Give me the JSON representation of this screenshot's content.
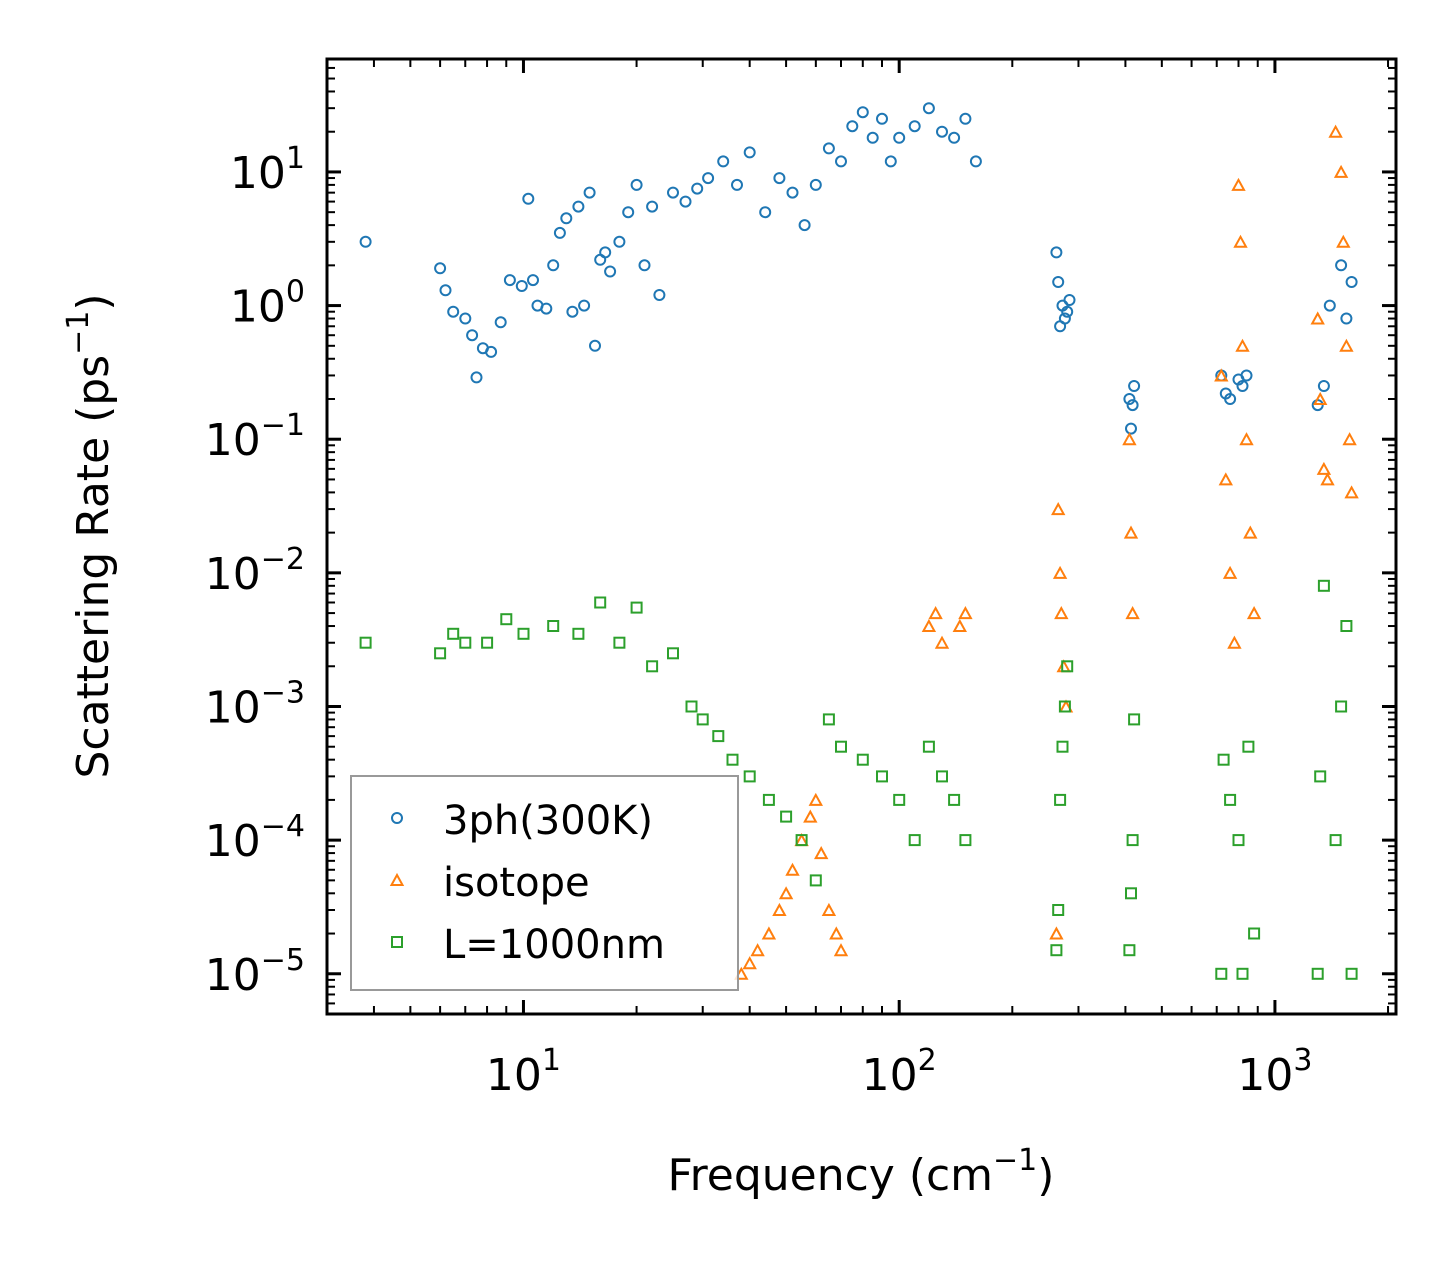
{
  "chart_data": {
    "type": "scatter",
    "xscale": "log",
    "yscale": "log",
    "xlim": [
      3.0,
      2100
    ],
    "ylim": [
      5e-06,
      70
    ],
    "xlabel": "Frequency (cm",
    "xlabel_sup": "−1",
    "xlabel_end": ")",
    "ylabel": "Scattering Rate (ps",
    "ylabel_sup": "−1",
    "ylabel_end": ")",
    "xticks": [
      {
        "value": 10,
        "base": "10",
        "exp": "1"
      },
      {
        "value": 100,
        "base": "10",
        "exp": "2"
      },
      {
        "value": 1000,
        "base": "10",
        "exp": "3"
      }
    ],
    "yticks": [
      {
        "value": 10,
        "base": "10",
        "exp": "1"
      },
      {
        "value": 1,
        "base": "10",
        "exp": "0"
      },
      {
        "value": 0.1,
        "base": "10",
        "exp": "−1"
      },
      {
        "value": 0.01,
        "base": "10",
        "exp": "−2"
      },
      {
        "value": 0.001,
        "base": "10",
        "exp": "−3"
      },
      {
        "value": 0.0001,
        "base": "10",
        "exp": "−4"
      },
      {
        "value": 1e-05,
        "base": "10",
        "exp": "−5"
      }
    ],
    "legend_position": "lower-left",
    "series": [
      {
        "name": "3ph(300K)",
        "marker": "circle",
        "color": "#1f77b4",
        "x": [
          3.8,
          6.0,
          6.2,
          6.5,
          7.0,
          7.3,
          7.5,
          7.8,
          8.2,
          8.7,
          9.2,
          9.9,
          10.3,
          10.6,
          10.9,
          11.5,
          12.0,
          12.5,
          13.0,
          13.5,
          14.0,
          14.5,
          15.0,
          15.5,
          16.0,
          16.5,
          17.0,
          18.0,
          19.0,
          20.0,
          21.0,
          22.0,
          23.0,
          25.0,
          27.0,
          29.0,
          31.0,
          34.0,
          37.0,
          40.0,
          44.0,
          48.0,
          52.0,
          56.0,
          60.0,
          65.0,
          70.0,
          75.0,
          80.0,
          85.0,
          90.0,
          95.0,
          100.0,
          110.0,
          120.0,
          130.0,
          140.0,
          150.0,
          160.0,
          262,
          265,
          268,
          272,
          276,
          280,
          284,
          410,
          414,
          418,
          422,
          720,
          740,
          760,
          800,
          820,
          840,
          1300,
          1350,
          1400,
          1500,
          1550,
          1600
        ],
        "y": [
          3.0,
          1.9,
          1.3,
          0.9,
          0.8,
          0.6,
          0.29,
          0.48,
          0.45,
          0.75,
          1.55,
          1.4,
          6.3,
          1.55,
          1.0,
          0.95,
          2.0,
          3.5,
          4.5,
          0.9,
          5.5,
          1.0,
          7.0,
          0.5,
          2.2,
          2.5,
          1.8,
          3.0,
          5.0,
          8.0,
          2.0,
          5.5,
          1.2,
          7.0,
          6.0,
          7.5,
          9.0,
          12.0,
          8.0,
          14.0,
          5.0,
          9.0,
          7.0,
          4.0,
          8.0,
          15.0,
          12.0,
          22.0,
          28.0,
          18.0,
          25.0,
          12.0,
          18.0,
          22.0,
          30.0,
          20.0,
          18.0,
          25.0,
          12.0,
          2.5,
          1.5,
          0.7,
          1.0,
          0.8,
          0.9,
          1.1,
          0.2,
          0.12,
          0.18,
          0.25,
          0.3,
          0.22,
          0.2,
          0.28,
          0.25,
          0.3,
          0.18,
          0.25,
          1.0,
          2.0,
          0.8,
          1.5
        ]
      },
      {
        "name": "isotope",
        "marker": "triangle",
        "color": "#ff7f0e",
        "x": [
          38,
          40,
          42,
          45,
          48,
          50,
          52,
          55,
          58,
          60,
          62,
          65,
          68,
          70,
          120,
          125,
          130,
          145,
          150,
          262,
          265,
          268,
          270,
          274,
          278,
          410,
          414,
          418,
          720,
          740,
          760,
          780,
          800,
          810,
          820,
          840,
          860,
          880,
          1300,
          1320,
          1350,
          1380,
          1450,
          1500,
          1520,
          1550,
          1580,
          1600
        ],
        "y": [
          1e-05,
          1.2e-05,
          1.5e-05,
          2e-05,
          3e-05,
          4e-05,
          6e-05,
          0.0001,
          0.00015,
          0.0002,
          8e-05,
          3e-05,
          2e-05,
          1.5e-05,
          0.004,
          0.005,
          0.003,
          0.004,
          0.005,
          2e-05,
          0.03,
          0.01,
          0.005,
          0.002,
          0.001,
          0.1,
          0.02,
          0.005,
          0.3,
          0.05,
          0.01,
          0.003,
          8.0,
          3.0,
          0.5,
          0.1,
          0.02,
          0.005,
          0.8,
          0.2,
          0.06,
          0.05,
          20.0,
          10.0,
          3.0,
          0.5,
          0.1,
          0.04
        ]
      },
      {
        "name": "L=1000nm",
        "marker": "square",
        "color": "#2ca02c",
        "x": [
          3.8,
          6.0,
          6.5,
          7.0,
          8.0,
          9.0,
          10.0,
          12.0,
          14.0,
          16.0,
          18.0,
          20.0,
          22.0,
          25.0,
          28.0,
          30.0,
          33.0,
          36.0,
          40.0,
          45.0,
          50.0,
          55.0,
          60.0,
          65.0,
          70.0,
          80.0,
          90.0,
          100.0,
          110.0,
          120.0,
          130.0,
          140.0,
          150.0,
          262,
          265,
          268,
          272,
          276,
          280,
          410,
          414,
          418,
          422,
          720,
          730,
          760,
          800,
          820,
          850,
          880,
          1300,
          1320,
          1350,
          1450,
          1500,
          1550,
          1600
        ],
        "y": [
          0.003,
          0.0025,
          0.0035,
          0.003,
          0.003,
          0.0045,
          0.0035,
          0.004,
          0.0035,
          0.006,
          0.003,
          0.0055,
          0.002,
          0.0025,
          0.001,
          0.0008,
          0.0006,
          0.0004,
          0.0003,
          0.0002,
          0.00015,
          0.0001,
          5e-05,
          0.0008,
          0.0005,
          0.0004,
          0.0003,
          0.0002,
          0.0001,
          0.0005,
          0.0003,
          0.0002,
          0.0001,
          1.5e-05,
          3e-05,
          0.0002,
          0.0005,
          0.001,
          0.002,
          1.5e-05,
          4e-05,
          0.0001,
          0.0008,
          1e-05,
          0.0004,
          0.0002,
          0.0001,
          1e-05,
          0.0005,
          2e-05,
          1e-05,
          0.0003,
          0.008,
          0.0001,
          0.001,
          0.004,
          1e-05
        ]
      }
    ]
  }
}
